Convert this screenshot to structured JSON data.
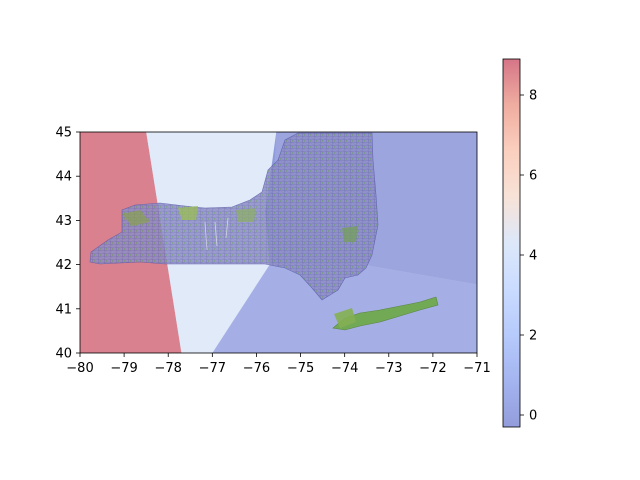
{
  "chart_data": {
    "type": "heatmap",
    "title": "",
    "xlabel": "",
    "ylabel": "",
    "xlim": [
      -80,
      -71
    ],
    "ylim": [
      40,
      45
    ],
    "x_ticks": [
      -80,
      -79,
      -78,
      -77,
      -76,
      -75,
      -74,
      -73,
      -72,
      -71
    ],
    "x_tick_labels": [
      "−80",
      "−79",
      "−78",
      "−77",
      "−76",
      "−75",
      "−74",
      "−73",
      "−72",
      "−71"
    ],
    "y_ticks": [
      40,
      41,
      42,
      43,
      44,
      45
    ],
    "y_tick_labels": [
      "40",
      "41",
      "42",
      "43",
      "44",
      "45"
    ],
    "grid": false,
    "colorbar": {
      "colormap": "coolwarm",
      "alpha": 0.5,
      "range": [
        -0.3,
        8.9
      ],
      "ticks": [
        0,
        2,
        4,
        6,
        8
      ],
      "tick_labels": [
        "0",
        "2",
        "4",
        "6",
        "8"
      ]
    },
    "regions": [
      {
        "value": 8.9,
        "color": "#b4031f",
        "vertices": [
          [
            -80,
            45
          ],
          [
            -78.5,
            45
          ],
          [
            -77.7,
            40
          ],
          [
            -80,
            40
          ]
        ]
      },
      {
        "value": 3.6,
        "color": "#c2d6f3",
        "vertices": [
          [
            -78.5,
            45
          ],
          [
            -75.55,
            45
          ],
          [
            -75.7,
            42.0
          ],
          [
            -77.0,
            40
          ],
          [
            -77.7,
            40
          ]
        ]
      },
      {
        "value": 0.0,
        "color": "#4c5fcb",
        "vertices": [
          [
            -75.7,
            42.0
          ],
          [
            -73.6,
            42.0
          ],
          [
            -71,
            41.55
          ],
          [
            -71,
            40
          ],
          [
            -77.0,
            40
          ]
        ]
      },
      {
        "value": -0.3,
        "color": "#3b4cc0",
        "vertices": [
          [
            -75.55,
            45
          ],
          [
            -71,
            45
          ],
          [
            -71,
            41.55
          ],
          [
            -73.6,
            42.0
          ],
          [
            -75.7,
            42.0
          ],
          [
            -75.8,
            43.2
          ]
        ]
      }
    ],
    "overlay": "road network of New York State"
  }
}
